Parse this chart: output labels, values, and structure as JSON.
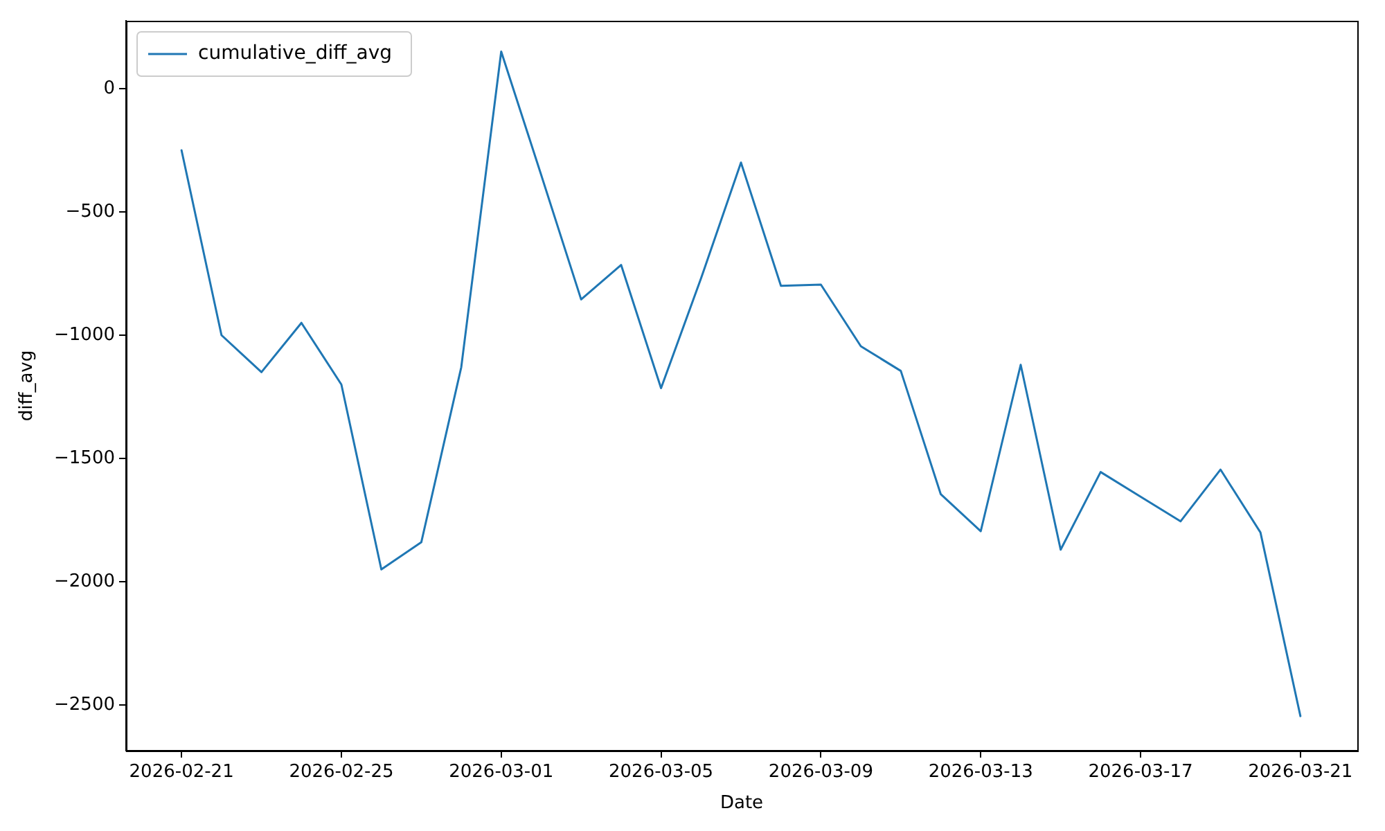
{
  "chart_data": {
    "type": "line",
    "xlabel": "Date",
    "ylabel": "diff_avg",
    "x": [
      "2026-02-21",
      "2026-02-22",
      "2026-02-23",
      "2026-02-24",
      "2026-02-25",
      "2026-02-26",
      "2026-02-27",
      "2026-02-28",
      "2026-03-01",
      "2026-03-02",
      "2026-03-03",
      "2026-03-04",
      "2026-03-05",
      "2026-03-06",
      "2026-03-07",
      "2026-03-08",
      "2026-03-09",
      "2026-03-10",
      "2026-03-11",
      "2026-03-12",
      "2026-03-13",
      "2026-03-14",
      "2026-03-15",
      "2026-03-16",
      "2026-03-17",
      "2026-03-18",
      "2026-03-19",
      "2026-03-20",
      "2026-03-21"
    ],
    "series": [
      {
        "name": "cumulative_diff_avg",
        "color": "#1f77b4",
        "values": [
          -250,
          -1000,
          -1150,
          -950,
          -1200,
          -1950,
          -1840,
          -1130,
          150,
          -350,
          -855,
          -715,
          -1215,
          -770,
          -300,
          -800,
          -795,
          -1045,
          -1145,
          -1645,
          -1795,
          -1120,
          -1870,
          -1555,
          -1655,
          -1755,
          -1545,
          -1800,
          -2545
        ]
      }
    ],
    "xlim": [
      "2026-02-19T14:40",
      "2026-03-22T10:10"
    ],
    "xticks": [
      "2026-02-21",
      "2026-02-25",
      "2026-03-01",
      "2026-03-05",
      "2026-03-09",
      "2026-03-13",
      "2026-03-17",
      "2026-03-21"
    ],
    "ylim": [
      -2685,
      275
    ],
    "yticks": [
      -2500,
      -2000,
      -1500,
      -1000,
      -500,
      0
    ],
    "grid": false,
    "legend": "top left",
    "marker": "none",
    "line_style": "solid"
  }
}
